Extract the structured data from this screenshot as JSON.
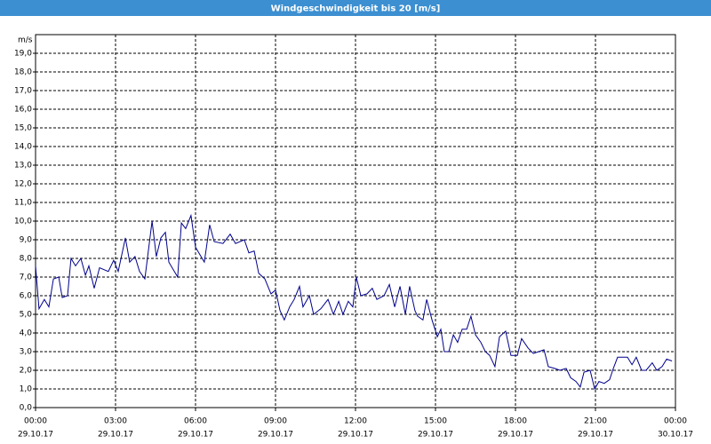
{
  "chart_data": {
    "type": "line",
    "title": "Windgeschwindigkeit bis 20 [m/s]",
    "y_label": "m/s",
    "color": "#00008b",
    "grid": true,
    "xlim": [
      0,
      24
    ],
    "ylim": [
      0,
      20
    ],
    "xticks": [
      {
        "value": 0,
        "label": "00:00"
      },
      {
        "value": 3,
        "label": "03:00"
      },
      {
        "value": 6,
        "label": "06:00"
      },
      {
        "value": 9,
        "label": "09:00"
      },
      {
        "value": 12,
        "label": "12:00"
      },
      {
        "value": 15,
        "label": "15:00"
      },
      {
        "value": 18,
        "label": "18:00"
      },
      {
        "value": 21,
        "label": "21:00"
      },
      {
        "value": 24,
        "label": "00:00"
      }
    ],
    "xtick_dates": [
      "29.10.17",
      "29.10.17",
      "29.10.17",
      "29.10.17",
      "29.10.17",
      "29.10.17",
      "29.10.17",
      "29.10.17",
      "30.10.17"
    ],
    "yticks": [
      {
        "value": 0,
        "label": "0,0"
      },
      {
        "value": 1,
        "label": "1,0"
      },
      {
        "value": 2,
        "label": "2,0"
      },
      {
        "value": 3,
        "label": "3,0"
      },
      {
        "value": 4,
        "label": "4,0"
      },
      {
        "value": 5,
        "label": "5,0"
      },
      {
        "value": 6,
        "label": "6,0"
      },
      {
        "value": 7,
        "label": "7,0"
      },
      {
        "value": 8,
        "label": "8,0"
      },
      {
        "value": 9,
        "label": "9,0"
      },
      {
        "value": 10,
        "label": "10,0"
      },
      {
        "value": 11,
        "label": "11,0"
      },
      {
        "value": 12,
        "label": "12,0"
      },
      {
        "value": 13,
        "label": "13,0"
      },
      {
        "value": 14,
        "label": "14,0"
      },
      {
        "value": 15,
        "label": "15,0"
      },
      {
        "value": 16,
        "label": "16,0"
      },
      {
        "value": 17,
        "label": "17,0"
      },
      {
        "value": 18,
        "label": "18,0"
      },
      {
        "value": 19,
        "label": "19,0"
      }
    ],
    "x": [
      0,
      0.13,
      0.33,
      0.5,
      0.67,
      0.87,
      1.0,
      1.2,
      1.33,
      1.5,
      1.7,
      1.87,
      2.0,
      2.2,
      2.4,
      2.73,
      2.93,
      3.1,
      3.37,
      3.53,
      3.73,
      3.9,
      4.1,
      4.37,
      4.53,
      4.7,
      4.87,
      5.0,
      5.33,
      5.47,
      5.63,
      5.83,
      6.0,
      6.33,
      6.53,
      6.7,
      7.03,
      7.3,
      7.5,
      7.83,
      8.0,
      8.2,
      8.37,
      8.6,
      8.83,
      9.0,
      9.17,
      9.33,
      9.53,
      9.7,
      9.9,
      10.03,
      10.27,
      10.43,
      10.7,
      10.97,
      11.17,
      11.37,
      11.53,
      11.73,
      11.9,
      12.03,
      12.2,
      12.43,
      12.63,
      12.8,
      13.07,
      13.27,
      13.47,
      13.67,
      13.87,
      14.03,
      14.23,
      14.33,
      14.53,
      14.67,
      14.87,
      15.07,
      15.2,
      15.33,
      15.5,
      15.67,
      15.83,
      16.0,
      16.17,
      16.33,
      16.5,
      16.7,
      16.87,
      17.03,
      17.23,
      17.4,
      17.63,
      17.83,
      18.07,
      18.23,
      18.47,
      18.67,
      18.87,
      19.07,
      19.23,
      19.47,
      19.67,
      19.9,
      20.07,
      20.27,
      20.43,
      20.57,
      20.8,
      20.97,
      21.13,
      21.33,
      21.53,
      21.67,
      21.83,
      22.03,
      22.2,
      22.37,
      22.53,
      22.73,
      22.9,
      23.13,
      23.3,
      23.5,
      23.67,
      23.87
    ],
    "values": [
      7.6,
      5.3,
      5.8,
      5.4,
      6.9,
      7.0,
      5.9,
      6.0,
      8.0,
      7.6,
      8.0,
      7.1,
      7.6,
      6.4,
      7.5,
      7.3,
      7.9,
      7.3,
      9.1,
      7.8,
      8.1,
      7.3,
      6.9,
      10.0,
      8.1,
      9.1,
      9.4,
      7.8,
      7.0,
      9.9,
      9.6,
      10.3,
      8.6,
      7.8,
      9.8,
      8.9,
      8.8,
      9.3,
      8.8,
      9.0,
      8.3,
      8.4,
      7.2,
      6.9,
      6.1,
      6.3,
      5.2,
      4.7,
      5.4,
      5.8,
      6.5,
      5.4,
      6.0,
      5.0,
      5.3,
      5.8,
      5.0,
      5.7,
      5.0,
      5.7,
      5.4,
      7.0,
      6.0,
      6.1,
      6.4,
      5.8,
      6.0,
      6.6,
      5.4,
      6.5,
      5.0,
      6.5,
      5.2,
      4.9,
      4.7,
      5.8,
      4.7,
      3.8,
      4.2,
      3.0,
      3.0,
      3.9,
      3.5,
      4.2,
      4.2,
      4.9,
      3.9,
      3.5,
      3.0,
      2.8,
      2.2,
      3.8,
      4.1,
      2.8,
      2.8,
      3.7,
      3.2,
      2.9,
      3.0,
      3.1,
      2.2,
      2.1,
      2.0,
      2.1,
      1.6,
      1.4,
      1.1,
      1.9,
      2.0,
      1.0,
      1.4,
      1.3,
      1.5,
      2.1,
      2.7,
      2.7,
      2.7,
      2.3,
      2.7,
      2.0,
      2.0,
      2.4,
      2.0,
      2.2,
      2.6,
      2.5
    ]
  }
}
